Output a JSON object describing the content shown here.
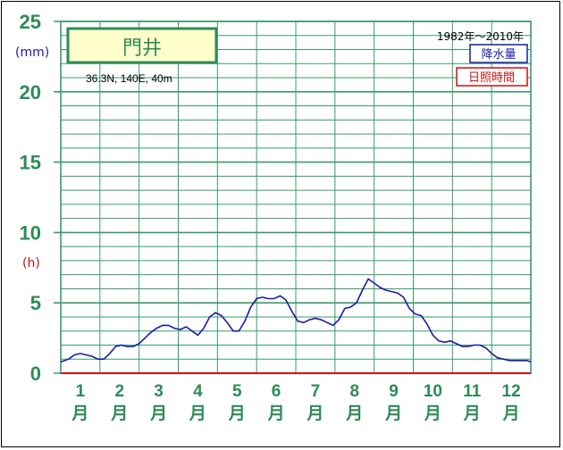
{
  "chart_data": {
    "type": "line",
    "station": "門井",
    "coords": "36.3N,  140E,  40m",
    "years": "1982年～2010年",
    "y_unit_precip": "(mm)",
    "y_unit_sun": "(h)",
    "legend": [
      {
        "label": "降水量",
        "color": "#1a1aa6"
      },
      {
        "label": "日照時間",
        "color": "#cc1111"
      }
    ],
    "ylim": [
      0,
      25
    ],
    "yticks": [
      "0",
      "5",
      "10",
      "15",
      "20",
      "25"
    ],
    "months": [
      {
        "num": "1",
        "kanji": "月"
      },
      {
        "num": "2",
        "kanji": "月"
      },
      {
        "num": "3",
        "kanji": "月"
      },
      {
        "num": "4",
        "kanji": "月"
      },
      {
        "num": "5",
        "kanji": "月"
      },
      {
        "num": "6",
        "kanji": "月"
      },
      {
        "num": "7",
        "kanji": "月"
      },
      {
        "num": "8",
        "kanji": "月"
      },
      {
        "num": "9",
        "kanji": "月"
      },
      {
        "num": "10",
        "kanji": "月"
      },
      {
        "num": "11",
        "kanji": "月"
      },
      {
        "num": "12",
        "kanji": "月"
      }
    ],
    "series": [
      {
        "name": "降水量",
        "color": "#1a1aa6",
        "x": [
          0,
          0.2,
          0.35,
          0.5,
          0.65,
          0.8,
          0.95,
          1.1,
          1.25,
          1.4,
          1.55,
          1.7,
          1.85,
          2.0,
          2.15,
          2.3,
          2.45,
          2.6,
          2.75,
          2.9,
          3.05,
          3.2,
          3.35,
          3.5,
          3.65,
          3.8,
          3.95,
          4.1,
          4.25,
          4.4,
          4.55,
          4.7,
          4.85,
          5.0,
          5.15,
          5.3,
          5.45,
          5.6,
          5.75,
          5.9,
          6.05,
          6.2,
          6.35,
          6.5,
          6.65,
          6.8,
          6.95,
          7.1,
          7.25,
          7.4,
          7.55,
          7.7,
          7.85,
          8.0,
          8.15,
          8.3,
          8.45,
          8.6,
          8.75,
          8.9,
          9.05,
          9.2,
          9.35,
          9.5,
          9.65,
          9.8,
          9.95,
          10.1,
          10.25,
          10.4,
          10.55,
          10.7,
          10.85,
          11.0,
          11.15,
          11.3,
          11.45,
          11.6,
          11.75,
          11.9,
          12.0
        ],
        "values": [
          0.8,
          1.0,
          1.3,
          1.4,
          1.3,
          1.2,
          1.0,
          1.0,
          1.4,
          1.9,
          2.0,
          1.9,
          1.9,
          2.1,
          2.5,
          2.9,
          3.2,
          3.4,
          3.4,
          3.2,
          3.1,
          3.3,
          3.0,
          2.7,
          3.2,
          4.0,
          4.3,
          4.1,
          3.6,
          3.0,
          3.0,
          3.7,
          4.7,
          5.3,
          5.4,
          5.3,
          5.3,
          5.5,
          5.2,
          4.4,
          3.7,
          3.6,
          3.8,
          3.9,
          3.8,
          3.6,
          3.4,
          3.8,
          4.6,
          4.7,
          5.0,
          5.9,
          6.7,
          6.4,
          6.1,
          5.9,
          5.8,
          5.7,
          5.4,
          4.6,
          4.2,
          4.1,
          3.5,
          2.7,
          2.3,
          2.2,
          2.3,
          2.1,
          1.9,
          1.9,
          2.0,
          2.0,
          1.8,
          1.4,
          1.1,
          1.0,
          0.9,
          0.9,
          0.9,
          0.9,
          0.8
        ]
      },
      {
        "name": "日照時間",
        "color": "#cc1111",
        "x": [
          0,
          12
        ],
        "values": [
          0,
          0
        ]
      }
    ]
  }
}
